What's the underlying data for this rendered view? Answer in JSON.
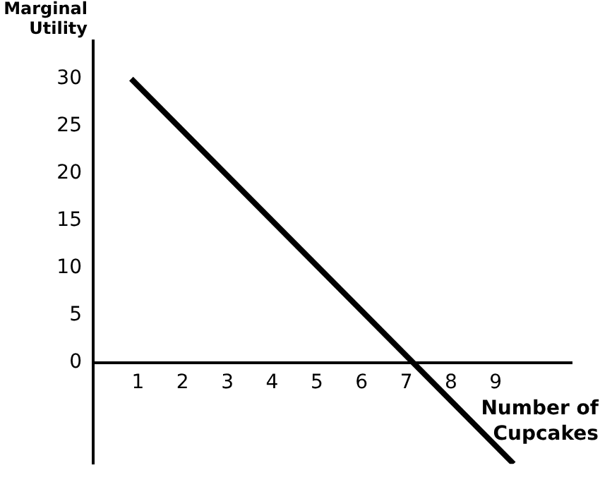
{
  "chart_data": {
    "type": "line",
    "xlabel": "Number of Cupcakes",
    "ylabel": "Marginal Utility",
    "x": [
      0.85,
      9.4
    ],
    "series": [
      {
        "color": "#000000",
        "values": [
          30,
          -10.7
        ]
      }
    ],
    "xlim": [
      0,
      10.7
    ],
    "xticks": [
      1,
      2,
      3,
      4,
      5,
      6,
      7,
      8,
      9
    ],
    "ylim": [
      -10.7,
      34
    ],
    "yticks": [
      0,
      5,
      10,
      15,
      20,
      25,
      30
    ],
    "grid": false,
    "legend": false,
    "marker": "none",
    "line_style": "solid"
  }
}
